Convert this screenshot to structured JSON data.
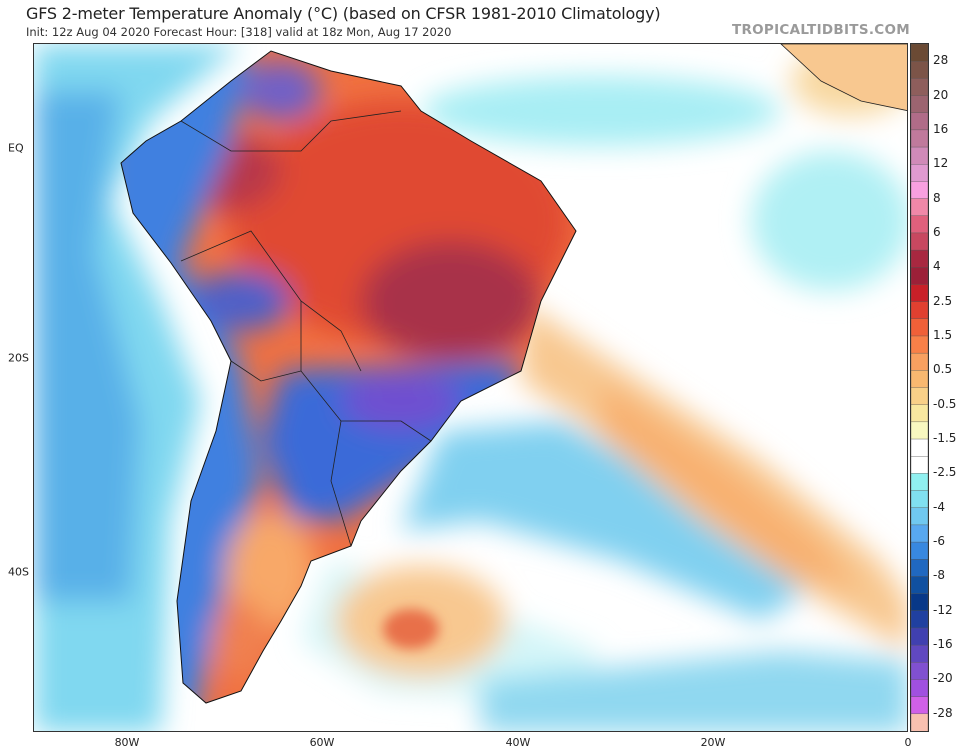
{
  "header": {
    "title": "GFS 2-meter Temperature Anomaly (°C) (based on CFSR 1981-2010 Climatology)",
    "subtitle": "Init: 12z Aug 04 2020   Forecast Hour: [318]   valid at 18z Mon, Aug 17 2020",
    "watermark": "TROPICALTIDBITS.COM"
  },
  "map": {
    "region": "South America",
    "lat_labels": [
      "EQ",
      "20S",
      "40S"
    ],
    "lon_labels": [
      "80W",
      "60W",
      "40W",
      "20W",
      "0"
    ]
  },
  "colorbar": {
    "labels": [
      "28",
      "20",
      "16",
      "12",
      "8",
      "6",
      "4",
      "2.5",
      "1.5",
      "0.5",
      "-0.5",
      "-1.5",
      "-2.5",
      "-4",
      "-6",
      "-8",
      "-12",
      "-16",
      "-20",
      "-28"
    ],
    "colors": [
      "#6b4a34",
      "#7c5448",
      "#8e5e5c",
      "#9c6470",
      "#b06c88",
      "#c07a9c",
      "#d08ab8",
      "#e09ad0",
      "#f8a0e0",
      "#f088a8",
      "#e0607c",
      "#c84860",
      "#a82840",
      "#9c2038",
      "#c82028",
      "#e04030",
      "#f06038",
      "#f88048",
      "#f8a060",
      "#f8b870",
      "#f8d088",
      "#f8e8a0",
      "#f8f8c0",
      "#ffffff",
      "#ffffff",
      "#90f0f0",
      "#80e0f0",
      "#70c8f0",
      "#58a8f0",
      "#3888e0",
      "#2068c0",
      "#1050a0",
      "#083888",
      "#2040a0",
      "#4040b0",
      "#6048c0",
      "#8050d0",
      "#a050e0",
      "#d060e8",
      "#f8c0b0"
    ]
  }
}
